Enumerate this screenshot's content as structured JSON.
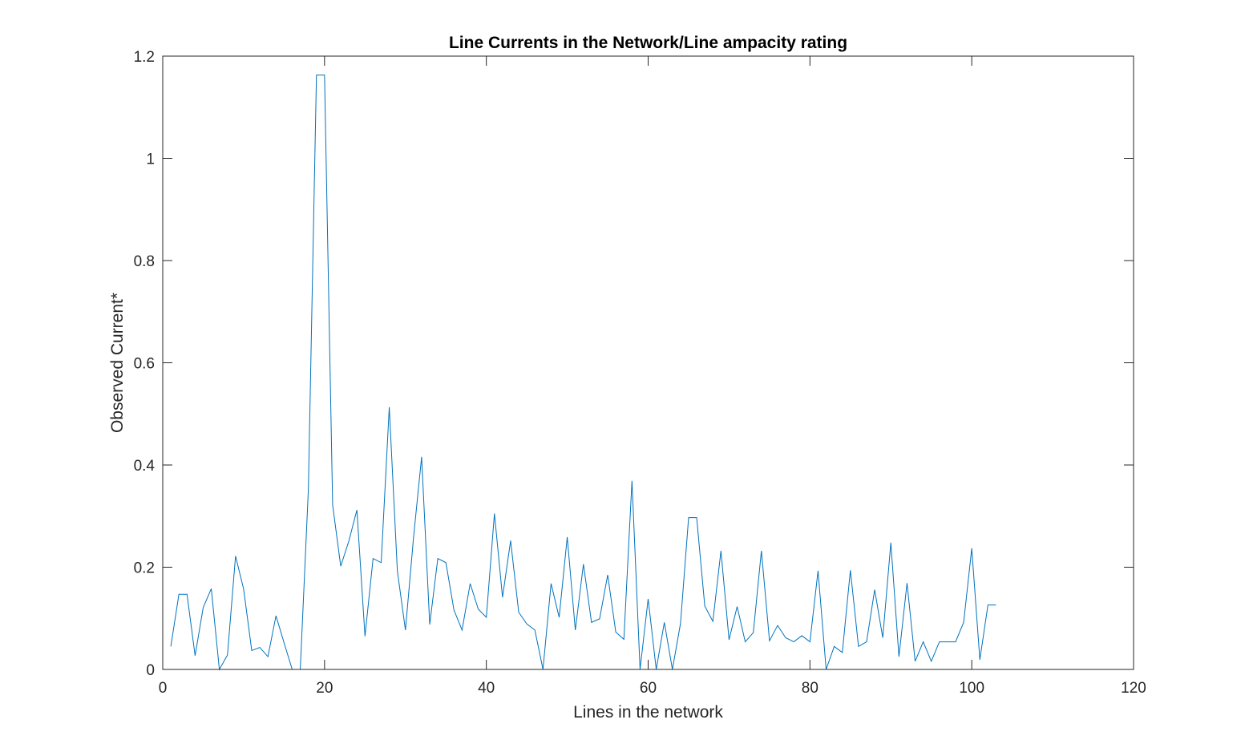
{
  "chart_data": {
    "type": "line",
    "title": "Line Currents in the Network/Line ampacity rating",
    "xlabel": "Lines in the network",
    "ylabel": "Observed Current*",
    "xlim": [
      0,
      120
    ],
    "ylim": [
      0,
      1.2
    ],
    "xticks": [
      0,
      20,
      40,
      60,
      80,
      100,
      120
    ],
    "yticks": [
      0,
      0.2,
      0.4,
      0.6,
      0.8,
      1,
      1.2
    ],
    "xtick_labels": [
      "0",
      "20",
      "40",
      "60",
      "80",
      "100",
      "120"
    ],
    "ytick_labels": [
      "0",
      "0.2",
      "0.4",
      "0.6",
      "0.8",
      "1",
      "1.2"
    ],
    "grid": false,
    "series": [
      {
        "color": "#0072BD",
        "x": [
          1,
          2,
          3,
          4,
          5,
          6,
          7,
          8,
          9,
          10,
          11,
          12,
          13,
          14,
          15,
          16,
          17,
          18,
          19,
          20,
          21,
          22,
          23,
          24,
          25,
          26,
          27,
          28,
          29,
          30,
          31,
          32,
          33,
          34,
          35,
          36,
          37,
          38,
          39,
          40,
          41,
          42,
          43,
          44,
          45,
          46,
          47,
          48,
          49,
          50,
          51,
          52,
          53,
          54,
          55,
          56,
          57,
          58,
          59,
          60,
          61,
          62,
          63,
          64,
          65,
          66,
          67,
          68,
          69,
          70,
          71,
          72,
          73,
          74,
          75,
          76,
          77,
          78,
          79,
          80,
          81,
          82,
          83,
          84,
          85,
          86,
          87,
          88,
          89,
          90,
          91,
          92,
          93,
          94,
          95,
          96,
          97,
          98,
          99,
          100,
          101,
          102,
          103
        ],
        "y": [
          0.045,
          0.147,
          0.147,
          0.027,
          0.121,
          0.158,
          0.0,
          0.028,
          0.222,
          0.157,
          0.037,
          0.043,
          0.025,
          0.105,
          0.052,
          0.0,
          0.0,
          0.352,
          1.163,
          1.163,
          0.322,
          0.202,
          0.251,
          0.312,
          0.065,
          0.217,
          0.209,
          0.513,
          0.193,
          0.077,
          0.258,
          0.416,
          0.088,
          0.217,
          0.209,
          0.116,
          0.077,
          0.168,
          0.118,
          0.102,
          0.305,
          0.141,
          0.252,
          0.112,
          0.089,
          0.077,
          0.0,
          0.168,
          0.102,
          0.259,
          0.077,
          0.206,
          0.092,
          0.099,
          0.185,
          0.073,
          0.059,
          0.369,
          0.0,
          0.138,
          0.0,
          0.092,
          0.0,
          0.09,
          0.297,
          0.297,
          0.124,
          0.094,
          0.232,
          0.058,
          0.123,
          0.054,
          0.072,
          0.232,
          0.056,
          0.086,
          0.062,
          0.054,
          0.066,
          0.054,
          0.193,
          0.0,
          0.045,
          0.033,
          0.194,
          0.045,
          0.054,
          0.156,
          0.062,
          0.248,
          0.025,
          0.169,
          0.016,
          0.054,
          0.016,
          0.054,
          0.054,
          0.054,
          0.092,
          0.237,
          0.019,
          0.126,
          0.126
        ]
      }
    ]
  }
}
